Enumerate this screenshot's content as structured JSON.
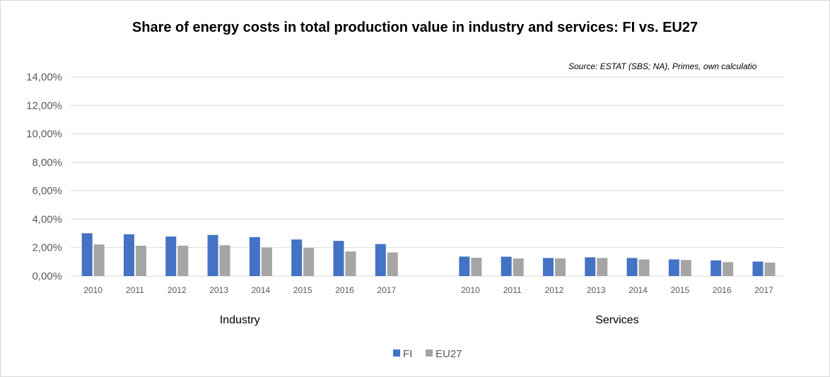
{
  "chart_data": {
    "type": "bar",
    "title": "Share of energy costs in total production value in industry and services: FI vs. EU27",
    "source": "Source: ESTAT (SBS; NA), Primes, own calculatio",
    "ylim": [
      0,
      14
    ],
    "yticks": [
      "0,00%",
      "2,00%",
      "4,00%",
      "6,00%",
      "8,00%",
      "10,00%",
      "12,00%",
      "14,00%"
    ],
    "yunit": "percent",
    "grid": true,
    "legend_position": "bottom",
    "groups": [
      {
        "label": "Industry",
        "categories": [
          "2010",
          "2011",
          "2012",
          "2013",
          "2014",
          "2015",
          "2016",
          "2017"
        ],
        "series": [
          {
            "name": "FI",
            "values": [
              3.01,
              2.94,
              2.78,
              2.89,
              2.74,
              2.57,
              2.47,
              2.25
            ]
          },
          {
            "name": "EU27",
            "values": [
              2.22,
              2.13,
              2.13,
              2.17,
              2.01,
              1.98,
              1.73,
              1.66
            ]
          }
        ]
      },
      {
        "label": "Services",
        "categories": [
          "2010",
          "2011",
          "2012",
          "2013",
          "2014",
          "2015",
          "2016",
          "2017"
        ],
        "series": [
          {
            "name": "FI",
            "values": [
              1.37,
              1.36,
              1.27,
              1.32,
              1.27,
              1.17,
              1.1,
              1.02
            ]
          },
          {
            "name": "EU27",
            "values": [
              1.29,
              1.24,
              1.24,
              1.27,
              1.17,
              1.13,
              0.98,
              0.95
            ]
          }
        ]
      }
    ],
    "legend": [
      {
        "name": "FI",
        "color": "#4472c4"
      },
      {
        "name": "EU27",
        "color": "#a5a5a5"
      }
    ]
  }
}
